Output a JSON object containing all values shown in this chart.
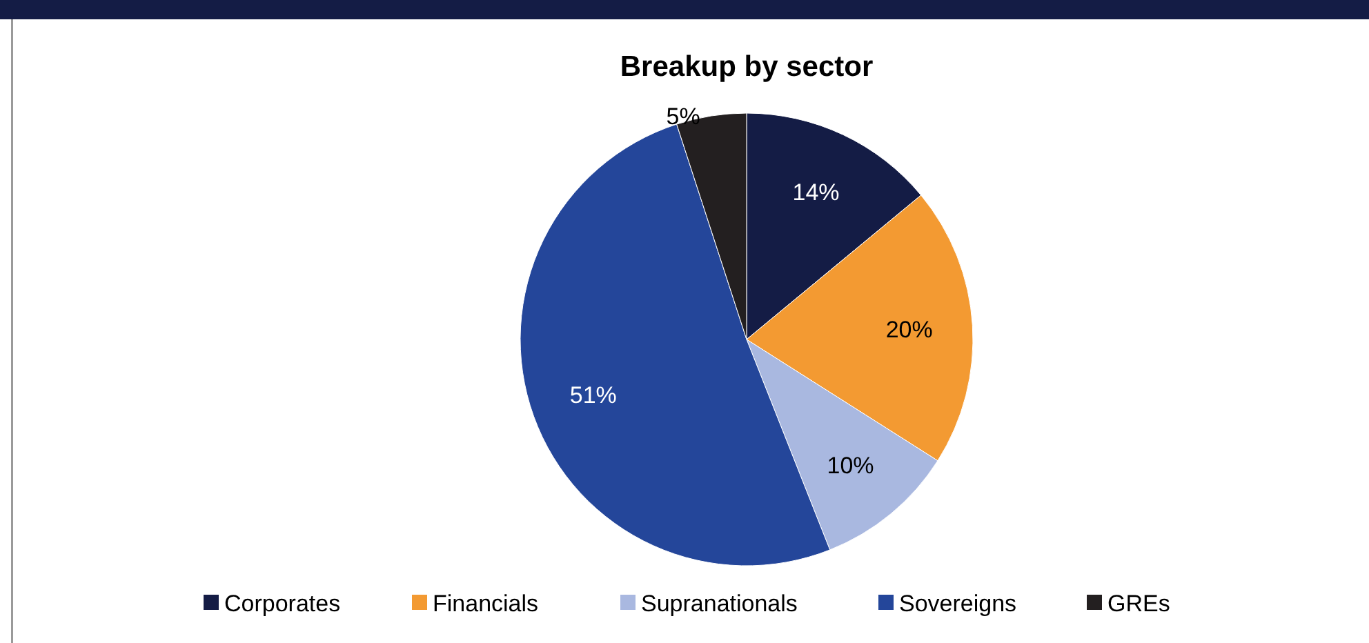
{
  "chart_data": {
    "type": "pie",
    "title": "Breakup by sector",
    "categories": [
      "Corporates",
      "Financials",
      "Supranationals",
      "Sovereigns",
      "GREs"
    ],
    "values": [
      14,
      20,
      10,
      51,
      5
    ],
    "colors": [
      "#141c45",
      "#f39a32",
      "#a9b8e0",
      "#24469a",
      "#231f20"
    ],
    "value_labels": [
      "14%",
      "20%",
      "10%",
      "51%",
      "5%"
    ],
    "legend": "bottom"
  }
}
